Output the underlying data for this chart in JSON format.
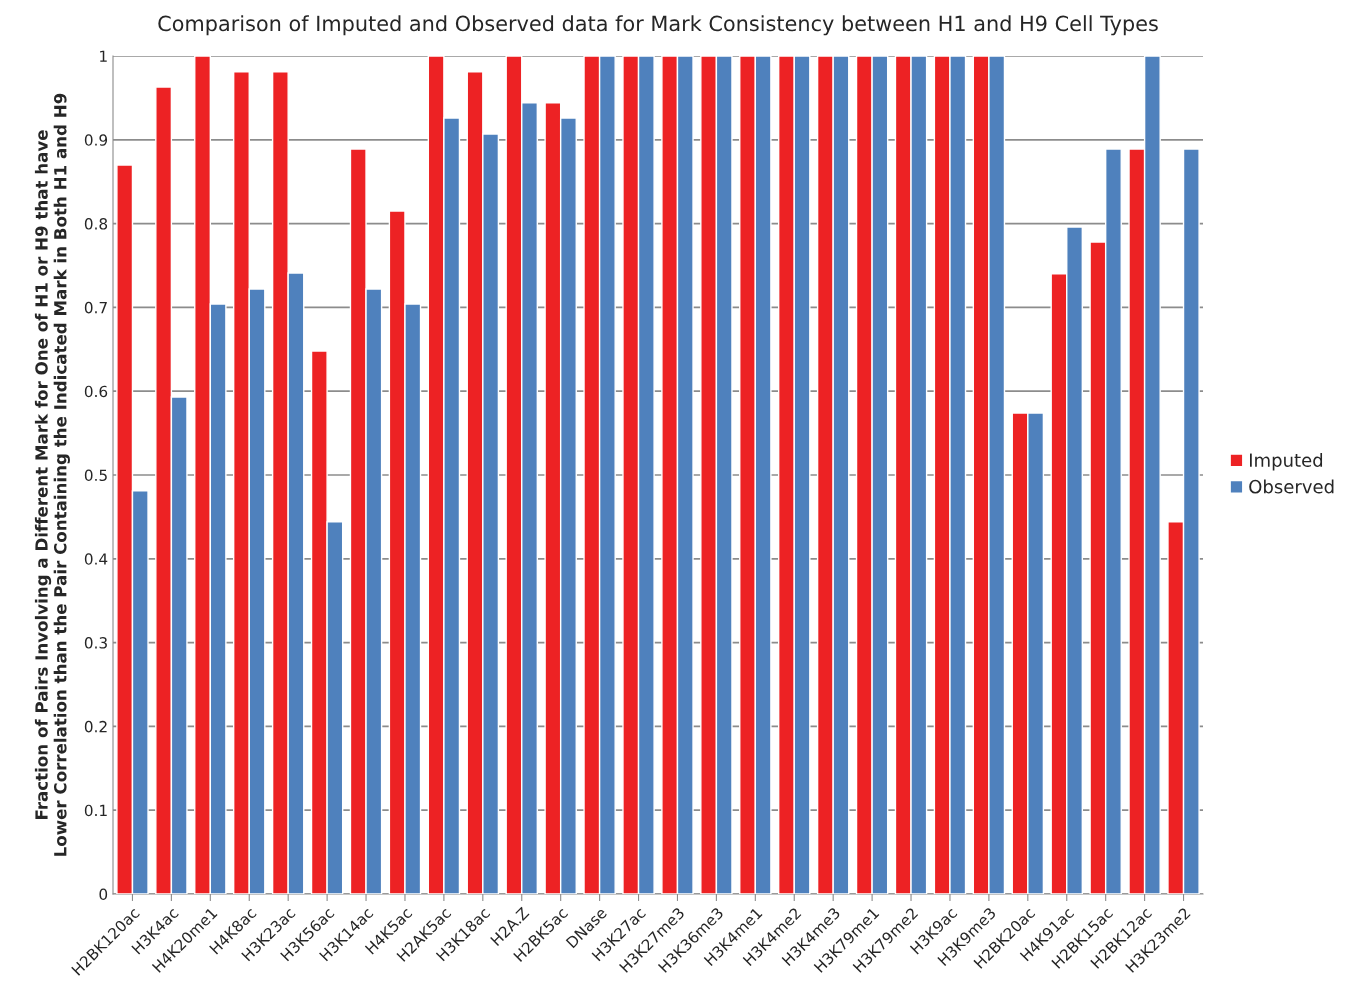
{
  "chart_data": {
    "type": "bar",
    "title": "Comparison of Imputed and Observed data for Mark Consistency between H1 and H9 Cell Types",
    "ylabel": "Fraction of Pairs Involving a Different Mark for One of H1 or H9 that have\nLower Correlation than the Pair Containing the Indicated Mark in Both H1 and H9",
    "categories": [
      "H2BK120ac",
      "H3K4ac",
      "H4K20me1",
      "H4K8ac",
      "H3K23ac",
      "H3K56ac",
      "H3K14ac",
      "H4K5ac",
      "H2AK5ac",
      "H3K18ac",
      "H2A.Z",
      "H2BK5ac",
      "DNase",
      "H3K27ac",
      "H3K27me3",
      "H3K36me3",
      "H3K4me1",
      "H3K4me2",
      "H3K4me3",
      "H3K79me1",
      "H3K79me2",
      "H3K9ac",
      "H3K9me3",
      "H2BK20ac",
      "H4K91ac",
      "H2BK15ac",
      "H2BK12ac",
      "H3K23me2"
    ],
    "series": [
      {
        "name": "Imputed",
        "color": "#ed2224",
        "values": [
          0.87,
          0.963,
          1,
          0.981,
          0.981,
          0.648,
          0.889,
          0.815,
          1,
          0.981,
          1,
          0.944,
          1,
          1,
          1,
          1,
          1,
          1,
          1,
          1,
          1,
          1,
          1,
          0.574,
          0.74,
          0.778,
          0.889,
          0.444
        ]
      },
      {
        "name": "Observed",
        "color": "#4f81bd",
        "values": [
          0.481,
          0.593,
          0.704,
          0.722,
          0.741,
          0.444,
          0.722,
          0.704,
          0.926,
          0.907,
          0.944,
          0.926,
          1,
          1,
          1,
          1,
          1,
          1,
          1,
          1,
          1,
          1,
          1,
          0.574,
          0.796,
          0.889,
          1,
          0.889
        ]
      }
    ],
    "ylim": [
      0,
      1
    ],
    "yticks": [
      0,
      0.1,
      0.2,
      0.3,
      0.4,
      0.5,
      0.6,
      0.7,
      0.8,
      0.9,
      1
    ],
    "grid": "y",
    "legend": "right"
  }
}
